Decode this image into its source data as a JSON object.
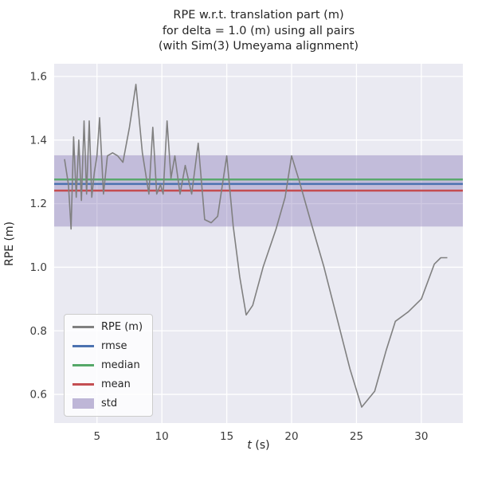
{
  "chart_data": {
    "type": "line",
    "title_lines": [
      "RPE w.r.t. translation part (m)",
      "for delta = 1.0 (m) using all pairs",
      "(with Sim(3) Umeyama alignment)"
    ],
    "xlabel_var": "t",
    "xlabel_unit": " (s)",
    "ylabel": "RPE (m)",
    "xlim": [
      1.7,
      33.2
    ],
    "ylim": [
      0.51,
      1.64
    ],
    "xticks": [
      5,
      10,
      15,
      20,
      25,
      30
    ],
    "yticks": [
      0.6,
      0.8,
      1.0,
      1.2,
      1.4,
      1.6
    ],
    "grid": true,
    "plot_bg": "#eaeaf2",
    "grid_color": "#ffffff",
    "legend_position": "lower left",
    "series": [
      {
        "name": "RPE (m)",
        "kind": "line",
        "color": "#808080",
        "x": [
          2.5,
          2.8,
          3.0,
          3.2,
          3.4,
          3.6,
          3.8,
          4.0,
          4.2,
          4.4,
          4.6,
          4.8,
          5.0,
          5.2,
          5.5,
          5.8,
          6.2,
          6.6,
          7.0,
          7.5,
          8.0,
          8.5,
          9.0,
          9.3,
          9.6,
          9.9,
          10.1,
          10.4,
          10.7,
          11.0,
          11.4,
          11.8,
          12.3,
          12.8,
          13.3,
          13.8,
          14.3,
          15.0,
          15.5,
          16.0,
          16.5,
          17.0,
          17.8,
          18.8,
          19.5,
          20.0,
          20.6,
          21.5,
          22.5,
          23.5,
          24.5,
          25.4,
          26.4,
          27.3,
          28.0,
          29.0,
          30.0,
          31.0,
          31.5,
          32.0
        ],
        "y": [
          1.34,
          1.26,
          1.12,
          1.41,
          1.22,
          1.4,
          1.21,
          1.46,
          1.23,
          1.46,
          1.22,
          1.3,
          1.35,
          1.47,
          1.23,
          1.35,
          1.36,
          1.35,
          1.33,
          1.44,
          1.575,
          1.36,
          1.23,
          1.44,
          1.23,
          1.26,
          1.23,
          1.46,
          1.28,
          1.35,
          1.23,
          1.32,
          1.23,
          1.39,
          1.15,
          1.14,
          1.16,
          1.35,
          1.13,
          0.97,
          0.85,
          0.88,
          1.0,
          1.12,
          1.22,
          1.35,
          1.27,
          1.14,
          1.0,
          0.84,
          0.68,
          0.56,
          0.61,
          0.74,
          0.83,
          0.86,
          0.9,
          1.01,
          1.03,
          1.03
        ]
      },
      {
        "name": "rmse",
        "kind": "hline",
        "color": "#4c72b0",
        "value": 1.262
      },
      {
        "name": "median",
        "kind": "hline",
        "color": "#55a868",
        "value": 1.276
      },
      {
        "name": "mean",
        "kind": "hline",
        "color": "#c44e52",
        "value": 1.241
      },
      {
        "name": "std",
        "kind": "band",
        "color": "#8172b2",
        "alpha": 0.38,
        "low": 1.128,
        "high": 1.352
      }
    ]
  }
}
